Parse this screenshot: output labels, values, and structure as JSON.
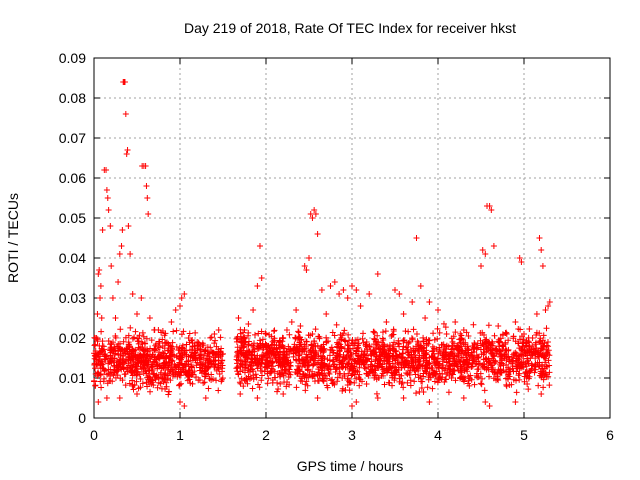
{
  "chart_data": {
    "type": "scatter",
    "title": "Day 219 of 2018, Rate Of TEC Index for receiver hkst",
    "xlabel": "GPS time / hours",
    "ylabel": "ROTI / TECUs",
    "xlim": [
      0,
      6
    ],
    "ylim": [
      0,
      0.09
    ],
    "xticks": [
      0,
      1,
      2,
      3,
      4,
      5,
      6
    ],
    "xtick_labels": [
      "0",
      "1",
      "2",
      "3",
      "4",
      "5",
      "6"
    ],
    "yticks": [
      0,
      0.01,
      0.02,
      0.03,
      0.04,
      0.05,
      0.06,
      0.07,
      0.08,
      0.09
    ],
    "ytick_labels": [
      "0",
      "0.01",
      "0.02",
      "0.03",
      "0.04",
      "0.05",
      "0.06",
      "0.07",
      "0.08",
      "0.09"
    ],
    "grid": true,
    "marker": "+",
    "color": "#ff0000",
    "data_gap_hours": [
      1.5,
      1.65
    ],
    "points": [
      [
        0.02,
        0.011
      ],
      [
        0.03,
        0.02
      ],
      [
        0.04,
        0.026
      ],
      [
        0.05,
        0.036
      ],
      [
        0.06,
        0.037
      ],
      [
        0.07,
        0.03
      ],
      [
        0.08,
        0.033
      ],
      [
        0.09,
        0.025
      ],
      [
        0.1,
        0.047
      ],
      [
        0.12,
        0.062
      ],
      [
        0.14,
        0.062
      ],
      [
        0.15,
        0.057
      ],
      [
        0.16,
        0.055
      ],
      [
        0.17,
        0.052
      ],
      [
        0.19,
        0.048
      ],
      [
        0.2,
        0.038
      ],
      [
        0.22,
        0.03
      ],
      [
        0.25,
        0.025
      ],
      [
        0.28,
        0.034
      ],
      [
        0.3,
        0.041
      ],
      [
        0.32,
        0.043
      ],
      [
        0.33,
        0.047
      ],
      [
        0.34,
        0.084
      ],
      [
        0.35,
        0.084
      ],
      [
        0.36,
        0.084
      ],
      [
        0.37,
        0.076
      ],
      [
        0.38,
        0.066
      ],
      [
        0.39,
        0.067
      ],
      [
        0.4,
        0.048
      ],
      [
        0.42,
        0.041
      ],
      [
        0.45,
        0.031
      ],
      [
        0.5,
        0.026
      ],
      [
        0.55,
        0.03
      ],
      [
        0.56,
        0.063
      ],
      [
        0.58,
        0.063
      ],
      [
        0.6,
        0.063
      ],
      [
        0.61,
        0.058
      ],
      [
        0.62,
        0.055
      ],
      [
        0.63,
        0.051
      ],
      [
        0.65,
        0.025
      ],
      [
        0.7,
        0.022
      ],
      [
        0.8,
        0.018
      ],
      [
        0.9,
        0.024
      ],
      [
        0.95,
        0.027
      ],
      [
        1.0,
        0.028
      ],
      [
        1.02,
        0.03
      ],
      [
        1.05,
        0.031
      ],
      [
        1.1,
        0.02
      ],
      [
        1.2,
        0.019
      ],
      [
        1.3,
        0.017
      ],
      [
        1.4,
        0.021
      ],
      [
        1.45,
        0.022
      ],
      [
        1.68,
        0.025
      ],
      [
        1.75,
        0.022
      ],
      [
        1.85,
        0.027
      ],
      [
        1.9,
        0.033
      ],
      [
        1.93,
        0.043
      ],
      [
        1.95,
        0.035
      ],
      [
        2.0,
        0.021
      ],
      [
        2.1,
        0.019
      ],
      [
        2.2,
        0.02
      ],
      [
        2.3,
        0.024
      ],
      [
        2.35,
        0.027
      ],
      [
        2.4,
        0.023
      ],
      [
        2.45,
        0.038
      ],
      [
        2.47,
        0.037
      ],
      [
        2.5,
        0.04
      ],
      [
        2.52,
        0.051
      ],
      [
        2.54,
        0.05
      ],
      [
        2.56,
        0.052
      ],
      [
        2.58,
        0.051
      ],
      [
        2.6,
        0.046
      ],
      [
        2.65,
        0.032
      ],
      [
        2.7,
        0.026
      ],
      [
        2.75,
        0.033
      ],
      [
        2.8,
        0.034
      ],
      [
        2.85,
        0.031
      ],
      [
        2.9,
        0.032
      ],
      [
        2.95,
        0.03
      ],
      [
        3.0,
        0.033
      ],
      [
        3.05,
        0.032
      ],
      [
        3.1,
        0.028
      ],
      [
        3.2,
        0.031
      ],
      [
        3.3,
        0.036
      ],
      [
        3.4,
        0.024
      ],
      [
        3.5,
        0.032
      ],
      [
        3.55,
        0.031
      ],
      [
        3.6,
        0.026
      ],
      [
        3.7,
        0.029
      ],
      [
        3.75,
        0.045
      ],
      [
        3.8,
        0.033
      ],
      [
        3.85,
        0.025
      ],
      [
        3.9,
        0.029
      ],
      [
        4.0,
        0.027
      ],
      [
        4.1,
        0.021
      ],
      [
        4.2,
        0.024
      ],
      [
        4.3,
        0.022
      ],
      [
        4.4,
        0.018
      ],
      [
        4.5,
        0.038
      ],
      [
        4.52,
        0.042
      ],
      [
        4.55,
        0.041
      ],
      [
        4.57,
        0.053
      ],
      [
        4.6,
        0.053
      ],
      [
        4.62,
        0.052
      ],
      [
        4.65,
        0.043
      ],
      [
        4.7,
        0.023
      ],
      [
        4.8,
        0.021
      ],
      [
        4.9,
        0.024
      ],
      [
        4.95,
        0.04
      ],
      [
        4.97,
        0.039
      ],
      [
        5.0,
        0.021
      ],
      [
        5.1,
        0.02
      ],
      [
        5.15,
        0.026
      ],
      [
        5.18,
        0.045
      ],
      [
        5.2,
        0.042
      ],
      [
        5.22,
        0.038
      ],
      [
        5.25,
        0.027
      ],
      [
        5.28,
        0.028
      ],
      [
        5.3,
        0.029
      ],
      [
        0.05,
        0.004
      ],
      [
        0.15,
        0.005
      ],
      [
        0.3,
        0.005
      ],
      [
        0.5,
        0.006
      ],
      [
        1.0,
        0.004
      ],
      [
        1.05,
        0.003
      ],
      [
        1.3,
        0.005
      ],
      [
        1.7,
        0.006
      ],
      [
        1.9,
        0.005
      ],
      [
        2.2,
        0.006
      ],
      [
        2.6,
        0.005
      ],
      [
        3.0,
        0.003
      ],
      [
        3.05,
        0.004
      ],
      [
        3.3,
        0.005
      ],
      [
        3.6,
        0.005
      ],
      [
        3.9,
        0.004
      ],
      [
        4.3,
        0.005
      ],
      [
        4.55,
        0.004
      ],
      [
        4.6,
        0.003
      ],
      [
        4.9,
        0.004
      ],
      [
        5.2,
        0.006
      ]
    ],
    "band_segments": [
      {
        "x_start": 0.0,
        "x_end": 1.5,
        "y_min": 0.005,
        "y_max": 0.021
      },
      {
        "x_start": 1.65,
        "x_end": 5.3,
        "y_min": 0.005,
        "y_max": 0.022
      }
    ]
  }
}
